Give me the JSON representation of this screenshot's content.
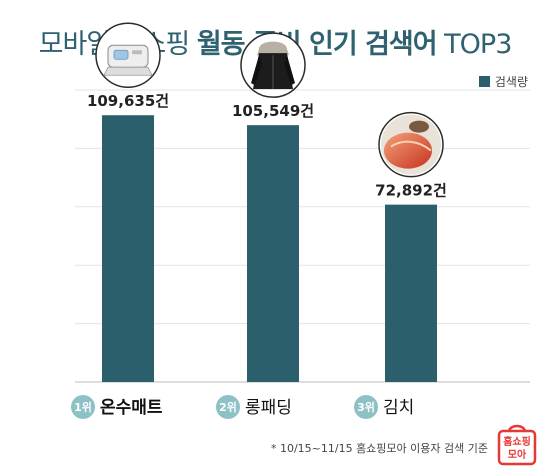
{
  "title": {
    "prefix": "모바일 홈쇼핑 ",
    "emphasis": "월동 준비 인기 검색어",
    "suffix": " TOP3"
  },
  "legend": {
    "label": "검색량",
    "color": "#2b5f6c"
  },
  "chart_data": {
    "type": "bar",
    "categories": [
      "온수매트",
      "롱패딩",
      "김치"
    ],
    "ranks": [
      "1위",
      "2위",
      "3위"
    ],
    "series": [
      {
        "name": "검색량",
        "values": [
          109635,
          105549,
          72892
        ]
      }
    ],
    "value_labels": [
      "109,635건",
      "105,549건",
      "72,892건"
    ],
    "product_icons": [
      "hot-water-mat-icon",
      "padded-jacket-icon",
      "kimchi-icon"
    ],
    "ylim": [
      0,
      120000
    ],
    "grid": true,
    "legend_position": "top-right",
    "bar_color": "#2b5f6c",
    "badge_color": "#8ec1c6"
  },
  "footnote": "* 10/15~11/15 홈쇼핑모아 이용자 검색 기준",
  "logo": {
    "line1": "홈쇼핑",
    "line2": "모아",
    "color": "#e53935"
  }
}
